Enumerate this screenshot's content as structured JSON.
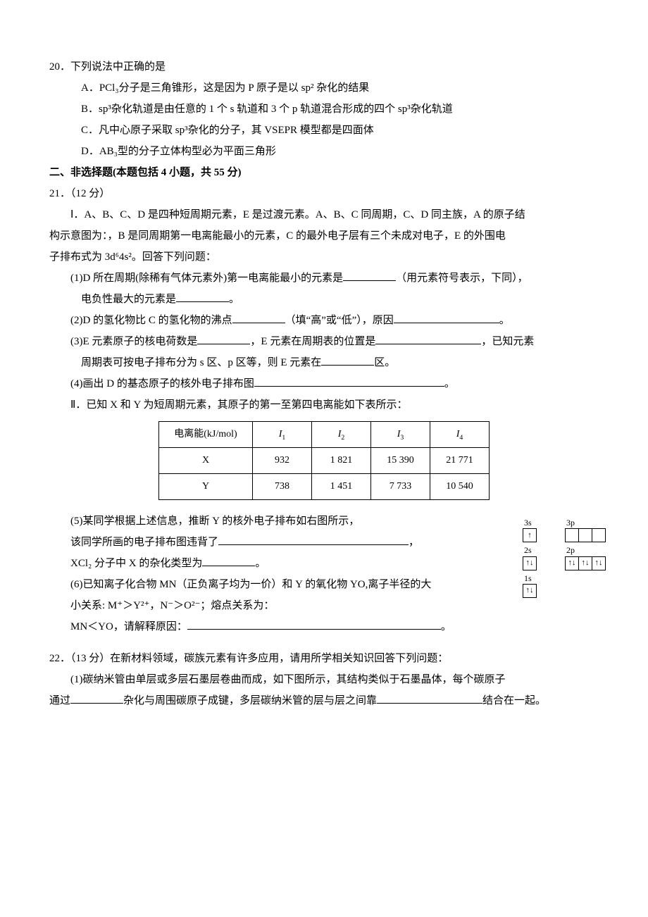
{
  "q20": {
    "stem": "20．下列说法中正确的是",
    "A": "A．PCl₃分子是三角锥形，这是因为 P 原子是以 sp² 杂化的结果",
    "B": "B．sp³杂化轨道是由任意的 1 个 s 轨道和 3 个 p 轨道混合形成的四个 sp³杂化轨道",
    "C": "C．凡中心原子采取 sp³杂化的分子，其 VSEPR 模型都是四面体",
    "D": "D．AB₃型的分子立体构型必为平面三角形"
  },
  "section2": "二、非选择题(本题包括 4 小题，共 55 分)",
  "q21": {
    "header": "21．（12 分）",
    "partI_1": "Ⅰ．A、B、C、D 是四种短周期元素，E 是过渡元素。A、B、C 同周期，C、D 同主族，A 的原子结",
    "partI_2": "构示意图为：，B 是同周期第一电离能最小的元素，C 的最外电子层有三个未成对电子，E 的外围电",
    "partI_3": "子排布式为 3d⁶4s²。回答下列问题：",
    "s1a": "(1)D 所在周期(除稀有气体元素外)第一电离能最小的元素是",
    "s1b": "（用元素符号表示，下同），",
    "s1c": "电负性最大的元素是",
    "s1d": "。",
    "s2a": "(2)D 的氢化物比 C 的氢化物的沸点",
    "s2b": "（填“高”或“低”），原因",
    "s2c": "。",
    "s3a": "(3)E 元素原子的核电荷数是",
    "s3b": "，E 元素在周期表的位置是",
    "s3c": "，已知元素",
    "s3d": "周期表可按电子排布分为 s 区、p 区等，则 E 元素在",
    "s3e": "区。",
    "s4a": "(4)画出 D 的基态原子的核外电子排布图",
    "s4b": "。",
    "partII": "Ⅱ．已知 X 和 Y 为短周期元素，其原子的第一至第四电离能如下表所示：",
    "table": {
      "head": [
        "电离能(kJ/mol)",
        "I₁",
        "I₂",
        "I₃",
        "I₄"
      ],
      "rows": [
        [
          "X",
          "932",
          "1 821",
          "15 390",
          "21 771"
        ],
        [
          "Y",
          "738",
          "1 451",
          "7 733",
          "10 540"
        ]
      ]
    },
    "s5a": "(5)某同学根据上述信息，推断 Y 的核外电子排布如右图所示，",
    "s5b": "该同学所画的电子排布图违背了",
    "s5c": "，",
    "s5d": "XCl₂ 分子中 X 的杂化类型为",
    "s5e": "。",
    "s6a": "(6)已知离子化合物 MN（正负离子均为一价）和 Y 的氧化物 YO,离子半径的大",
    "s6b": "小关系: M⁺＞Y²⁺，N⁻＞O²⁻；熔点关系为：",
    "s6c": "MN＜YO，请解释原因：",
    "s6d": "。",
    "orbitals": {
      "r1": {
        "left": {
          "label": "3s",
          "cells": [
            "↑"
          ]
        },
        "right": {
          "label": "3p",
          "cells": [
            "",
            "",
            ""
          ]
        }
      },
      "r2": {
        "left": {
          "label": "2s",
          "cells": [
            "↑↓"
          ]
        },
        "right": {
          "label": "2p",
          "cells": [
            "↑↓",
            "↑↓",
            "↑↓"
          ]
        }
      },
      "r3": {
        "left": {
          "label": "1s",
          "cells": [
            "↑↓"
          ]
        }
      }
    }
  },
  "q22": {
    "header": "22．（13 分）在新材料领域，碳族元素有许多应用，请用所学相关知识回答下列问题：",
    "s1a": "(1)碳纳米管由单层或多层石墨层卷曲而成，如下图所示，其结构类似于石墨晶体，每个碳原子",
    "s1b": "通过",
    "s1c": "杂化与周围碳原子成键，多层碳纳米管的层与层之间靠",
    "s1d": "结合在一起。"
  }
}
